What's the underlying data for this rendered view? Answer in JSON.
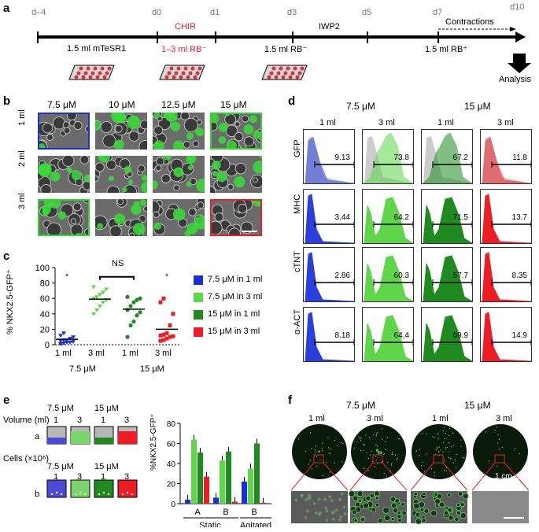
{
  "panel_labels": {
    "a": "a",
    "b": "b",
    "c": "c",
    "d": "d",
    "e": "e",
    "f": "f"
  },
  "panel_a": {
    "days": [
      "d–4",
      "d0",
      "d1",
      "d3",
      "d5",
      "d7",
      "d10"
    ],
    "chir": "CHIR",
    "iwp2": "IWP2",
    "contractions": "Contractions",
    "media": [
      "1.5 ml mTeSR1",
      "1–3 ml RB⁻",
      "1.5 ml RB⁻",
      "1.5 ml RB⁺"
    ],
    "analysis": "Analysis"
  },
  "panel_b": {
    "col_headers": [
      "7.5 μM",
      "10 μM",
      "12.5 μM",
      "15 μM"
    ],
    "row_headers": [
      "1 ml",
      "2 ml",
      "3 ml"
    ]
  },
  "panel_c": {
    "ylabel": "% NKX2.5-GFP⁺",
    "yticks": [
      "0",
      "20",
      "40",
      "60",
      "80",
      "100"
    ],
    "ns": "NS",
    "xvol": [
      "1 ml",
      "3 ml",
      "1 ml",
      "3 ml"
    ],
    "xconc": [
      "7.5 μM",
      "15 μM"
    ],
    "legend": [
      "7.5 μM in 1 ml",
      "7.5 μM in 3 ml",
      "15 μM in 1 ml",
      "15 μM in 3 ml"
    ],
    "colors": [
      "#1c2fd6",
      "#5fd64a",
      "#1f8a1f",
      "#ee1c25"
    ]
  },
  "chart_data": [
    {
      "type": "scatter",
      "ylabel": "% NKX2.5-GFP⁺",
      "ylim": [
        0,
        100
      ],
      "categories": [
        "7.5 μM in 1 ml",
        "7.5 μM in 3 ml",
        "15 μM in 1 ml",
        "15 μM in 3 ml"
      ],
      "series": [
        {
          "name": "7.5 μM in 1 ml",
          "values": [
            1,
            2,
            3,
            3,
            4,
            5,
            6,
            6,
            8,
            10,
            12,
            15
          ],
          "mean": 7
        },
        {
          "name": "7.5 μM in 3 ml",
          "values": [
            40,
            45,
            50,
            55,
            58,
            60,
            62,
            65,
            68,
            72,
            75
          ],
          "mean": 59
        },
        {
          "name": "15 μM in 1 ml",
          "values": [
            10,
            25,
            30,
            38,
            42,
            45,
            50,
            55,
            58,
            60,
            62
          ],
          "mean": 46
        },
        {
          "name": "15 μM in 3 ml",
          "values": [
            5,
            6,
            8,
            10,
            11,
            12,
            13,
            15,
            25,
            40,
            55,
            60
          ],
          "mean": 20
        }
      ]
    },
    {
      "type": "bar",
      "ylabel": "%NKX2.5-GFP⁺",
      "ylim": [
        0,
        80
      ],
      "categories": [
        "A",
        "B",
        "B"
      ],
      "groups": [
        "Static",
        "Static",
        "Agitated"
      ],
      "series": [
        {
          "name": "7.5 μM 1 ml",
          "values": [
            4,
            6,
            22
          ]
        },
        {
          "name": "7.5 μM 3 ml",
          "values": [
            64,
            43,
            35
          ]
        },
        {
          "name": "15 μM 1 ml",
          "values": [
            51,
            52,
            60
          ]
        },
        {
          "name": "15 μM 3 ml",
          "values": [
            27,
            2,
            1
          ]
        }
      ]
    }
  ],
  "panel_d": {
    "conc": [
      "7.5 μM",
      "15 μM"
    ],
    "vol": [
      "1 ml",
      "3 ml",
      "1 ml",
      "3 ml"
    ],
    "markers": [
      "GFP",
      "MHC",
      "cTNT",
      "α-ACT"
    ],
    "values": [
      [
        "9.13",
        "73.8",
        "67.2",
        "11.8"
      ],
      [
        "3.44",
        "64.2",
        "71.5",
        "13.7"
      ],
      [
        "2.86",
        "60.3",
        "57.7",
        "8.35"
      ],
      [
        "8.18",
        "64.4",
        "69.9",
        "14.9"
      ]
    ]
  },
  "panel_e": {
    "conc": [
      "7.5 μM",
      "15 μM"
    ],
    "vol_label": "Volume (ml)",
    "cells_label": "Cells (×10⁶)",
    "nums": [
      "1",
      "3",
      "1",
      "3"
    ],
    "row_a": "a",
    "row_b": "b",
    "yticks": [
      "0",
      "20",
      "40",
      "60",
      "80"
    ],
    "xcats": [
      "A",
      "B",
      "B"
    ],
    "groups": [
      "Static",
      "Agitated"
    ]
  },
  "panel_f": {
    "conc": [
      "7.5 μM",
      "15 μM"
    ],
    "vol": [
      "1 ml",
      "3 ml",
      "1 ml",
      "3 ml"
    ],
    "scale": "1 cm"
  }
}
